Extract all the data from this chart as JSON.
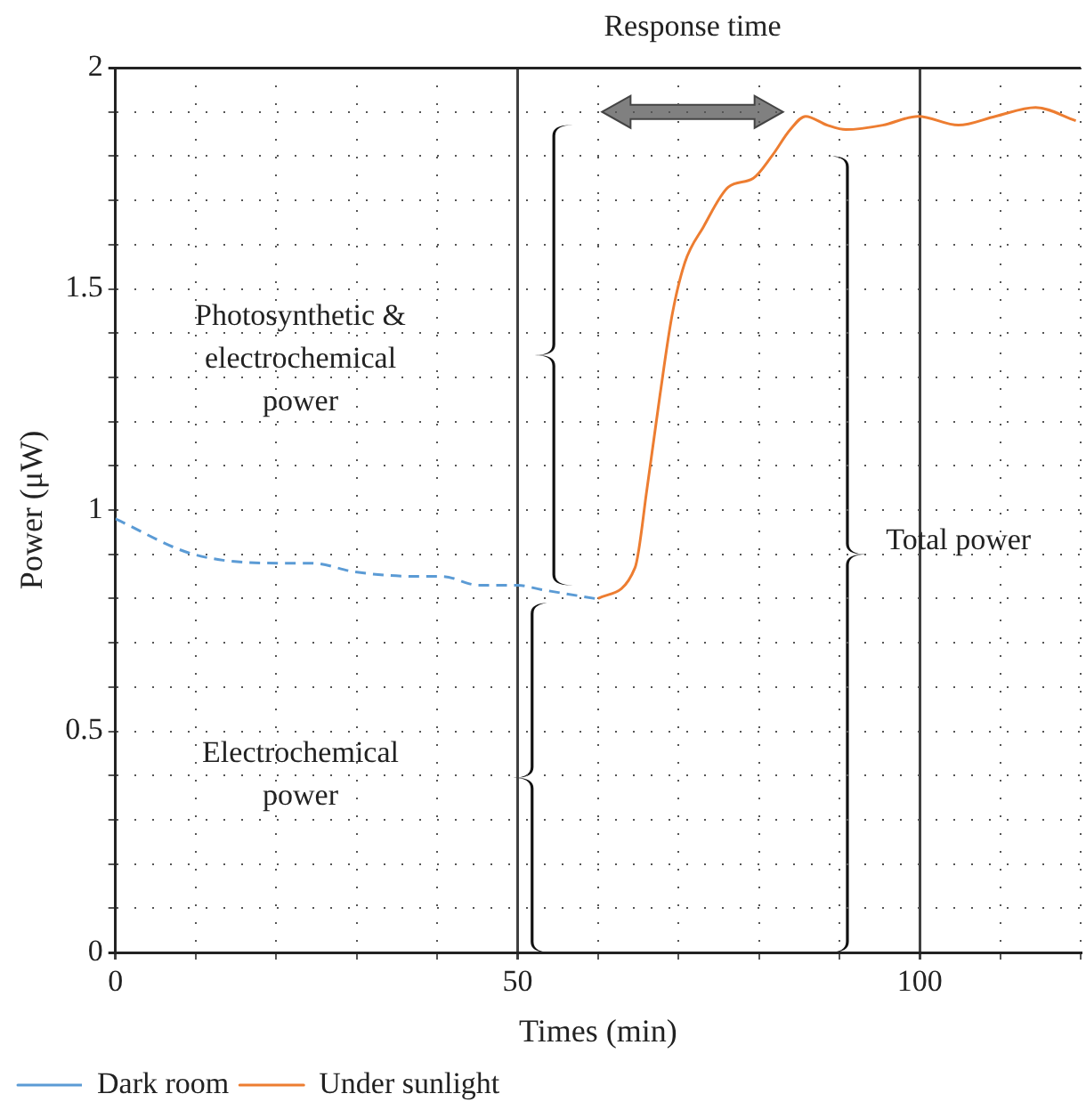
{
  "chart_data": {
    "type": "line",
    "xlabel": "Times (min)",
    "ylabel": "Power (μW)",
    "xlim": [
      0,
      120
    ],
    "ylim": [
      0,
      2
    ],
    "xticks": [
      0,
      {
        "value": 10,
        "label": null
      },
      {
        "value": 20,
        "label": null
      },
      {
        "value": 30,
        "label": null
      },
      {
        "value": 40,
        "label": null
      },
      50,
      {
        "value": 60,
        "label": null
      },
      {
        "value": 70,
        "label": null
      },
      {
        "value": 80,
        "label": null
      },
      {
        "value": 90,
        "label": null
      },
      100,
      {
        "value": 110,
        "label": null
      },
      {
        "value": 120,
        "label": null
      }
    ],
    "yticks": [
      0,
      {
        "value": 0.1,
        "label": null
      },
      {
        "value": 0.2,
        "label": null
      },
      {
        "value": 0.3,
        "label": null
      },
      {
        "value": 0.4,
        "label": null
      },
      0.5,
      {
        "value": 0.6,
        "label": null
      },
      {
        "value": 0.7,
        "label": null
      },
      {
        "value": 0.8,
        "label": null
      },
      {
        "value": 0.9,
        "label": null
      },
      1,
      {
        "value": 1.1,
        "label": null
      },
      {
        "value": 1.2,
        "label": null
      },
      {
        "value": 1.3,
        "label": null
      },
      {
        "value": 1.4,
        "label": null
      },
      1.5,
      {
        "value": 1.6,
        "label": null
      },
      {
        "value": 1.7,
        "label": null
      },
      {
        "value": 1.8,
        "label": null
      },
      {
        "value": 1.9,
        "label": null
      },
      2
    ],
    "grid": true,
    "legend": "bottom left",
    "marker": "none",
    "series": [
      {
        "name": "Dark room",
        "color": "#5b9bd5",
        "line_style": "dashed",
        "x": [
          0,
          9.7,
          20.4,
          24.4,
          29.8,
          37.6,
          40.6,
          45.2,
          50,
          53,
          59.6
        ],
        "values": [
          0.98,
          0.9,
          0.88,
          0.88,
          0.86,
          0.85,
          0.85,
          0.83,
          0.83,
          0.82,
          0.8
        ]
      },
      {
        "name": "Under sunlight",
        "color": "#ed7d31",
        "line_style": "solid",
        "x": [
          60,
          64.6,
          66.1,
          67.7,
          69.2,
          70.8,
          73.1,
          76.2,
          79.3,
          81.6,
          83.9,
          85.8,
          88.5,
          90.8,
          95.4,
          99.8,
          104.8,
          109.4,
          114.4,
          119.4
        ],
        "values": [
          0.8,
          0.87,
          1.05,
          1.26,
          1.44,
          1.56,
          1.64,
          1.73,
          1.75,
          1.8,
          1.86,
          1.89,
          1.87,
          1.86,
          1.87,
          1.89,
          1.87,
          1.89,
          1.91,
          1.88
        ]
      }
    ],
    "annotations": [
      "Response time",
      "Photosynthetic & electrochemical power",
      "Electrochemical power",
      "Total power"
    ]
  }
}
